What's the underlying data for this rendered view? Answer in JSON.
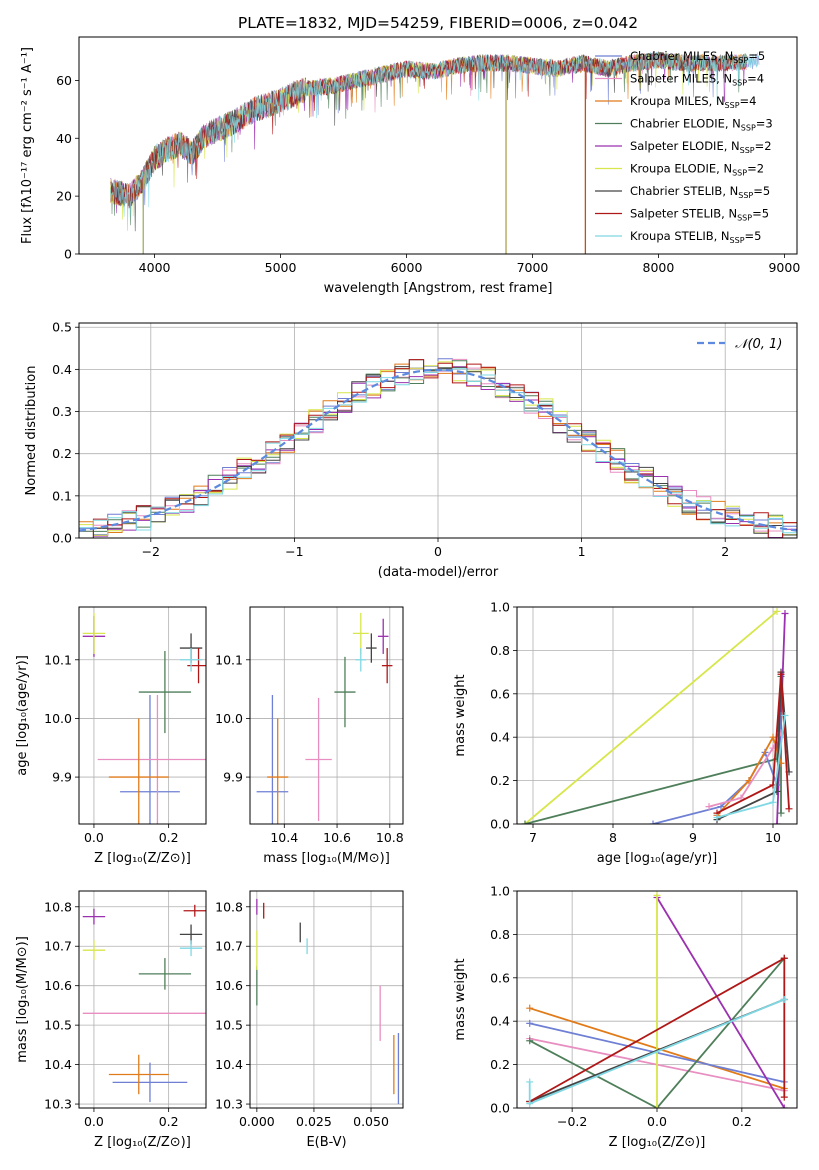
{
  "chart_data": [
    {
      "id": "spectrum",
      "type": "line",
      "title": "PLATE=1832, MJD=54259, FIBERID=0006, z=0.042",
      "xlabel": "wavelength [Angstrom, rest frame]",
      "ylabel": "Flux [fλ10⁻¹⁷ erg cm⁻² s⁻¹ A⁻¹]",
      "xlim": [
        3400,
        9100
      ],
      "ylim": [
        0,
        75
      ],
      "xticks": [
        4000,
        5000,
        6000,
        7000,
        8000,
        9000
      ],
      "yticks": [
        0,
        20,
        40,
        60
      ],
      "grid": false,
      "legend_position": "top-right",
      "legend": [
        {
          "label": "Chabrier MILES, N",
          "sub": "SSP",
          "n": "=5",
          "color": "#6e7fd4"
        },
        {
          "label": "Salpeter MILES, N",
          "sub": "SSP",
          "n": "=4",
          "color": "#e88ec0"
        },
        {
          "label": "Kroupa MILES, N",
          "sub": "SSP",
          "n": "=4",
          "color": "#e07b1a"
        },
        {
          "label": "Chabrier ELODIE, N",
          "sub": "SSP",
          "n": "=3",
          "color": "#4f7f5a"
        },
        {
          "label": "Salpeter ELODIE, N",
          "sub": "SSP",
          "n": "=2",
          "color": "#9b30b0"
        },
        {
          "label": "Kroupa ELODIE, N",
          "sub": "SSP",
          "n": "=2",
          "color": "#d7e64a"
        },
        {
          "label": "Chabrier STELIB, N",
          "sub": "SSP",
          "n": "=5",
          "color": "#444444"
        },
        {
          "label": "Salpeter STELIB, N",
          "sub": "SSP",
          "n": "=5",
          "color": "#b01818"
        },
        {
          "label": "Kroupa STELIB, N",
          "sub": "SSP",
          "n": "=5",
          "color": "#7fd8e4"
        }
      ],
      "continuum": {
        "x": [
          3650,
          3800,
          3900,
          4000,
          4100,
          4200,
          4300,
          4400,
          4600,
          4800,
          5000,
          5200,
          5400,
          5600,
          5800,
          6000,
          6200,
          6400,
          6600,
          6800,
          7000,
          7200,
          7400,
          7600,
          7800,
          8000,
          8200,
          8400,
          8600,
          8800
        ],
        "y": [
          22,
          20,
          25,
          33,
          36,
          38,
          35,
          41,
          45,
          50,
          53,
          57,
          58,
          60,
          62,
          64,
          63,
          65,
          66,
          66,
          65,
          64,
          66,
          64,
          66,
          67,
          66,
          66,
          66,
          67
        ]
      },
      "dips": [
        {
          "x": 3910,
          "y": 0
        },
        {
          "x": 6790,
          "y": 0
        },
        {
          "x": 7420,
          "y": 0
        }
      ]
    },
    {
      "id": "residuals",
      "type": "step",
      "xlabel": "(data-model)/error",
      "ylabel": "Normed distribution",
      "xlim": [
        -2.5,
        2.5
      ],
      "ylim": [
        0,
        0.51
      ],
      "xticks": [
        -2,
        -1,
        0,
        1,
        2
      ],
      "xticklabels": [
        "−2",
        "−1",
        "0",
        "1",
        "2"
      ],
      "yticks": [
        0.0,
        0.1,
        0.2,
        0.3,
        0.4,
        0.5
      ],
      "yticklabels": [
        "0.0",
        "0.1",
        "0.2",
        "0.3",
        "0.4",
        "0.5"
      ],
      "grid": true,
      "legend_position": "top-right",
      "bin_width": 0.1,
      "bin_start": -2.5,
      "reference": {
        "label": "𝒩(0, 1)",
        "color": "#5b8ae0"
      }
    },
    {
      "id": "age-vs-Z",
      "type": "errorbar",
      "xlabel": "Z [log₁₀(Z/Z⊙)]",
      "ylabel": "age  [log₁₀(age/yr)]",
      "xlim": [
        -0.04,
        0.3
      ],
      "ylim": [
        9.82,
        10.19
      ],
      "xticks": [
        0.0,
        0.2
      ],
      "xticklabels": [
        "0.0",
        "0.2"
      ],
      "yticks": [
        9.9,
        10.0,
        10.1
      ],
      "yticklabels": [
        "9.9",
        "10.0",
        "10.1"
      ],
      "grid": true,
      "points": [
        {
          "x": 0.15,
          "y": 9.875,
          "xerr": 0.08,
          "yerr": 0.165,
          "color": "#6e7fd4"
        },
        {
          "x": 0.17,
          "y": 9.93,
          "xerr": 0.16,
          "yerr": 0.11,
          "color": "#e88ec0"
        },
        {
          "x": 0.12,
          "y": 9.9,
          "xerr": 0.08,
          "yerr": 0.1,
          "color": "#e07b1a"
        },
        {
          "x": 0.19,
          "y": 10.045,
          "xerr": 0.07,
          "yerr": 0.07,
          "color": "#4f7f5a"
        },
        {
          "x": 0.0,
          "y": 10.14,
          "xerr": 0.03,
          "yerr": 0.035,
          "color": "#9b30b0"
        },
        {
          "x": 0.0,
          "y": 10.145,
          "xerr": 0.03,
          "yerr": 0.035,
          "color": "#d7e64a"
        },
        {
          "x": 0.26,
          "y": 10.12,
          "xerr": 0.03,
          "yerr": 0.025,
          "color": "#444444"
        },
        {
          "x": 0.28,
          "y": 10.09,
          "xerr": 0.03,
          "yerr": 0.03,
          "color": "#b01818"
        },
        {
          "x": 0.26,
          "y": 10.1,
          "xerr": 0.03,
          "yerr": 0.02,
          "color": "#7fd8e4"
        }
      ]
    },
    {
      "id": "age-vs-mass",
      "type": "errorbar",
      "xlabel": "mass [log₁₀(M/M⊙)]",
      "ylabel": "",
      "xlim": [
        10.27,
        10.85
      ],
      "ylim": [
        9.82,
        10.19
      ],
      "xticks": [
        10.4,
        10.6,
        10.8
      ],
      "xticklabels": [
        "10.4",
        "10.6",
        "10.8"
      ],
      "yticks": [
        9.9,
        10.0,
        10.1
      ],
      "yticklabels": [
        "9.9",
        "10.0",
        "10.1"
      ],
      "grid": true,
      "points": [
        {
          "x": 10.355,
          "y": 9.875,
          "xerr": 0.06,
          "yerr": 0.165,
          "color": "#6e7fd4"
        },
        {
          "x": 10.53,
          "y": 9.93,
          "xerr": 0.05,
          "yerr": 0.105,
          "color": "#e88ec0"
        },
        {
          "x": 10.375,
          "y": 9.9,
          "xerr": 0.04,
          "yerr": 0.1,
          "color": "#e07b1a"
        },
        {
          "x": 10.63,
          "y": 10.045,
          "xerr": 0.04,
          "yerr": 0.06,
          "color": "#4f7f5a"
        },
        {
          "x": 10.775,
          "y": 10.14,
          "xerr": 0.02,
          "yerr": 0.03,
          "color": "#9b30b0"
        },
        {
          "x": 10.69,
          "y": 10.145,
          "xerr": 0.03,
          "yerr": 0.035,
          "color": "#d7e64a"
        },
        {
          "x": 10.73,
          "y": 10.12,
          "xerr": 0.02,
          "yerr": 0.025,
          "color": "#444444"
        },
        {
          "x": 10.79,
          "y": 10.09,
          "xerr": 0.02,
          "yerr": 0.03,
          "color": "#b01818"
        },
        {
          "x": 10.69,
          "y": 10.1,
          "xerr": 0.02,
          "yerr": 0.02,
          "color": "#7fd8e4"
        }
      ]
    },
    {
      "id": "weight-vs-age",
      "type": "line",
      "xlabel": "age  [log₁₀(age/yr)]",
      "ylabel": "mass weight",
      "xlim": [
        6.8,
        10.3
      ],
      "ylim": [
        0,
        1
      ],
      "xticks": [
        7,
        8,
        9,
        10
      ],
      "xticklabels": [
        "7",
        "8",
        "9",
        "10"
      ],
      "yticks": [
        0.0,
        0.2,
        0.4,
        0.6,
        0.8,
        1.0
      ],
      "yticklabels": [
        "0.0",
        "0.2",
        "0.4",
        "0.6",
        "0.8",
        "1.0"
      ],
      "grid": true,
      "series": [
        {
          "color": "#d7e64a",
          "x": [
            6.9,
            10.05
          ],
          "y": [
            0.0,
            0.98
          ]
        },
        {
          "color": "#4f7f5a",
          "x": [
            6.9,
            10.05,
            10.1,
            10.1
          ],
          "y": [
            0.0,
            0.3,
            0.68,
            0.05
          ]
        },
        {
          "color": "#9b30b0",
          "x": [
            10.05,
            10.15
          ],
          "y": [
            0.0,
            0.97
          ]
        },
        {
          "color": "#6e7fd4",
          "x": [
            8.5,
            9.35,
            9.7,
            9.9,
            10.05,
            10.1
          ],
          "y": [
            0.0,
            0.08,
            0.2,
            0.33,
            0.18,
            0.5
          ]
        },
        {
          "color": "#e07b1a",
          "x": [
            9.3,
            9.7,
            10.0,
            10.1
          ],
          "y": [
            0.04,
            0.2,
            0.4,
            0.28
          ]
        },
        {
          "color": "#e88ec0",
          "x": [
            9.2,
            9.6,
            10.0,
            10.1
          ],
          "y": [
            0.08,
            0.12,
            0.35,
            0.42
          ]
        },
        {
          "color": "#444444",
          "x": [
            9.3,
            10.05,
            10.1,
            10.2
          ],
          "y": [
            0.02,
            0.15,
            0.7,
            0.24
          ]
        },
        {
          "color": "#b01818",
          "x": [
            9.3,
            10.0,
            10.1,
            10.2
          ],
          "y": [
            0.05,
            0.18,
            0.69,
            0.07
          ]
        },
        {
          "color": "#7fd8e4",
          "x": [
            9.3,
            10.0,
            10.15
          ],
          "y": [
            0.03,
            0.1,
            0.5
          ]
        }
      ]
    },
    {
      "id": "mass-vs-Z",
      "type": "errorbar",
      "xlabel": "Z [log₁₀(Z/Z⊙)]",
      "ylabel": "mass [log₁₀(M/M⊙)]",
      "xlim": [
        -0.04,
        0.3
      ],
      "ylim": [
        10.29,
        10.84
      ],
      "xticks": [
        0.0,
        0.2
      ],
      "xticklabels": [
        "0.0",
        "0.2"
      ],
      "yticks": [
        10.3,
        10.4,
        10.5,
        10.6,
        10.7,
        10.8
      ],
      "yticklabels": [
        "10.3",
        "10.4",
        "10.5",
        "10.6",
        "10.7",
        "10.8"
      ],
      "grid": true,
      "points": [
        {
          "x": 0.15,
          "y": 10.355,
          "xerr": 0.1,
          "yerr": 0.05,
          "color": "#6e7fd4"
        },
        {
          "x": 0.17,
          "y": 10.53,
          "xerr": 0.2,
          "yerr": 0.0,
          "color": "#e88ec0"
        },
        {
          "x": 0.12,
          "y": 10.375,
          "xerr": 0.08,
          "yerr": 0.05,
          "color": "#e07b1a"
        },
        {
          "x": 0.19,
          "y": 10.63,
          "xerr": 0.07,
          "yerr": 0.04,
          "color": "#4f7f5a"
        },
        {
          "x": 0.0,
          "y": 10.775,
          "xerr": 0.03,
          "yerr": 0.02,
          "color": "#9b30b0"
        },
        {
          "x": 0.0,
          "y": 10.69,
          "xerr": 0.03,
          "yerr": 0.025,
          "color": "#d7e64a"
        },
        {
          "x": 0.26,
          "y": 10.73,
          "xerr": 0.03,
          "yerr": 0.025,
          "color": "#444444"
        },
        {
          "x": 0.27,
          "y": 10.79,
          "xerr": 0.03,
          "yerr": 0.015,
          "color": "#b01818"
        },
        {
          "x": 0.26,
          "y": 10.695,
          "xerr": 0.03,
          "yerr": 0.02,
          "color": "#7fd8e4"
        }
      ]
    },
    {
      "id": "mass-vs-ebv",
      "type": "errorbar",
      "xlabel": "E(B-V)",
      "ylabel": "",
      "xlim": [
        -0.003,
        0.064
      ],
      "ylim": [
        10.29,
        10.84
      ],
      "xticks": [
        0.0,
        0.025,
        0.05
      ],
      "xticklabels": [
        "0.000",
        "0.025",
        "0.050"
      ],
      "yticks": [
        10.3,
        10.4,
        10.5,
        10.6,
        10.7,
        10.8
      ],
      "yticklabels": [
        "10.3",
        "10.4",
        "10.5",
        "10.6",
        "10.7",
        "10.8"
      ],
      "grid": true,
      "points": [
        {
          "x": 0.062,
          "y": 10.39,
          "xerr": 0.0,
          "yerr": 0.09,
          "color": "#6e7fd4"
        },
        {
          "x": 0.054,
          "y": 10.53,
          "xerr": 0.0,
          "yerr": 0.07,
          "color": "#e88ec0"
        },
        {
          "x": 0.06,
          "y": 10.4,
          "xerr": 0.0,
          "yerr": 0.075,
          "color": "#e07b1a"
        },
        {
          "x": 0.0,
          "y": 10.6,
          "xerr": 0.0,
          "yerr": 0.05,
          "color": "#4f7f5a"
        },
        {
          "x": 0.0,
          "y": 10.8,
          "xerr": 0.0,
          "yerr": 0.02,
          "color": "#9b30b0"
        },
        {
          "x": 0.0,
          "y": 10.69,
          "xerr": 0.0,
          "yerr": 0.05,
          "color": "#d7e64a"
        },
        {
          "x": 0.019,
          "y": 10.735,
          "xerr": 0.0,
          "yerr": 0.025,
          "color": "#444444"
        },
        {
          "x": 0.003,
          "y": 10.79,
          "xerr": 0.0,
          "yerr": 0.02,
          "color": "#b01818"
        },
        {
          "x": 0.022,
          "y": 10.7,
          "xerr": 0.0,
          "yerr": 0.02,
          "color": "#7fd8e4"
        }
      ]
    },
    {
      "id": "weight-vs-Z",
      "type": "line",
      "xlabel": "Z [log₁₀(Z/Z⊙)]",
      "ylabel": "mass weight",
      "xlim": [
        -0.33,
        0.33
      ],
      "ylim": [
        0,
        1
      ],
      "xticks": [
        -0.2,
        0.0,
        0.2
      ],
      "xticklabels": [
        "−0.2",
        "0.0",
        "0.2"
      ],
      "yticks": [
        0.0,
        0.2,
        0.4,
        0.6,
        0.8,
        1.0
      ],
      "yticklabels": [
        "0.0",
        "0.2",
        "0.4",
        "0.6",
        "0.8",
        "1.0"
      ],
      "grid": true,
      "series": [
        {
          "color": "#e07b1a",
          "x": [
            -0.3,
            0.3
          ],
          "y": [
            0.46,
            0.09
          ]
        },
        {
          "color": "#6e7fd4",
          "x": [
            -0.3,
            0.3
          ],
          "y": [
            0.39,
            0.12
          ]
        },
        {
          "color": "#e88ec0",
          "x": [
            -0.3,
            0.3
          ],
          "y": [
            0.32,
            0.08
          ]
        },
        {
          "color": "#4f7f5a",
          "x": [
            -0.3,
            0.0,
            0.3
          ],
          "y": [
            0.31,
            0.0,
            0.69
          ]
        },
        {
          "color": "#9b30b0",
          "x": [
            0.0,
            0.3
          ],
          "y": [
            0.97,
            0.0
          ]
        },
        {
          "color": "#d7e64a",
          "x": [
            0.0,
            0.0
          ],
          "y": [
            0.0,
            0.98
          ]
        },
        {
          "color": "#444444",
          "x": [
            -0.3,
            0.3
          ],
          "y": [
            0.03,
            0.5
          ]
        },
        {
          "color": "#b01818",
          "x": [
            -0.3,
            0.3,
            0.3
          ],
          "y": [
            0.03,
            0.69,
            0.05
          ]
        },
        {
          "color": "#7fd8e4",
          "x": [
            -0.3,
            -0.3,
            0.3
          ],
          "y": [
            0.12,
            0.02,
            0.5
          ]
        }
      ]
    }
  ]
}
